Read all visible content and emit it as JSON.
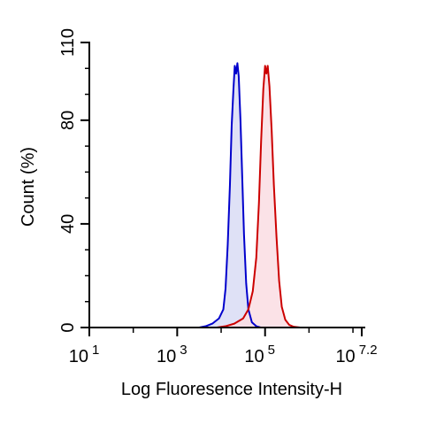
{
  "chart_data": {
    "type": "area",
    "xlabel": "Log Fluoresence Intensity-H",
    "ylabel": "Count  (%)",
    "x_scale": "log10",
    "xlim": [
      1,
      7.2
    ],
    "ylim": [
      0,
      110
    ],
    "x_ticks": [
      {
        "value": 1,
        "base": "10",
        "exp": "1"
      },
      {
        "value": 3,
        "base": "10",
        "exp": "3"
      },
      {
        "value": 5,
        "base": "10",
        "exp": "5"
      },
      {
        "value": 7.2,
        "base": "10",
        "exp": "7.2"
      }
    ],
    "y_ticks": [
      {
        "value": 0,
        "label": "0"
      },
      {
        "value": 40,
        "label": "40"
      },
      {
        "value": 80,
        "label": "80"
      },
      {
        "value": 110,
        "label": "110"
      }
    ],
    "grid": false,
    "legend": "none",
    "series": [
      {
        "color": "#0000cc",
        "fill": "#d9dcf5",
        "points": [
          [
            2.8,
            0
          ],
          [
            3.5,
            0
          ],
          [
            3.65,
            0.5
          ],
          [
            3.8,
            1.5
          ],
          [
            3.95,
            3.5
          ],
          [
            4.05,
            7
          ],
          [
            4.1,
            15
          ],
          [
            4.15,
            32
          ],
          [
            4.2,
            55
          ],
          [
            4.24,
            78
          ],
          [
            4.28,
            92
          ],
          [
            4.31,
            101
          ],
          [
            4.34,
            98
          ],
          [
            4.37,
            102
          ],
          [
            4.4,
            97
          ],
          [
            4.44,
            80
          ],
          [
            4.48,
            58
          ],
          [
            4.52,
            36
          ],
          [
            4.57,
            17
          ],
          [
            4.62,
            7
          ],
          [
            4.7,
            2
          ],
          [
            4.8,
            0.5
          ],
          [
            4.9,
            0
          ],
          [
            5.2,
            0
          ]
        ]
      },
      {
        "color": "#cc0000",
        "fill": "#fadde3",
        "points": [
          [
            1.0,
            0
          ],
          [
            3.9,
            0
          ],
          [
            4.1,
            0.5
          ],
          [
            4.3,
            1.5
          ],
          [
            4.5,
            3.5
          ],
          [
            4.62,
            7
          ],
          [
            4.72,
            14
          ],
          [
            4.8,
            27
          ],
          [
            4.86,
            48
          ],
          [
            4.91,
            72
          ],
          [
            4.96,
            92
          ],
          [
            5.0,
            101
          ],
          [
            5.03,
            98
          ],
          [
            5.06,
            101
          ],
          [
            5.1,
            93
          ],
          [
            5.15,
            76
          ],
          [
            5.2,
            55
          ],
          [
            5.26,
            35
          ],
          [
            5.32,
            18
          ],
          [
            5.38,
            8
          ],
          [
            5.46,
            3
          ],
          [
            5.55,
            1
          ],
          [
            5.65,
            0.3
          ],
          [
            5.8,
            0
          ],
          [
            6.2,
            0
          ]
        ]
      }
    ]
  }
}
